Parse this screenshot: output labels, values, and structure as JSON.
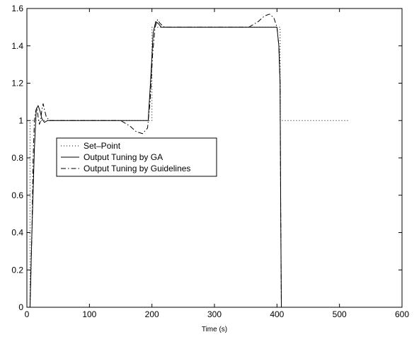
{
  "chart_data": {
    "type": "line",
    "title": "",
    "xlabel": "Time (s)",
    "ylabel": "",
    "xlim": [
      0,
      600
    ],
    "ylim": [
      0,
      1.6
    ],
    "xticks": [
      0,
      100,
      200,
      300,
      400,
      500,
      600
    ],
    "yticks": [
      0,
      0.2,
      0.4,
      0.6,
      0.8,
      1,
      1.2,
      1.4,
      1.6
    ],
    "grid": false,
    "legend": "center-left",
    "series": [
      {
        "name": "Set–Point",
        "style": "dotted",
        "color": "#000000",
        "x": [
          0,
          5,
          5,
          200,
          200,
          405,
          405,
          515
        ],
        "y": [
          0,
          0,
          1,
          1,
          1.5,
          1.5,
          1,
          1
        ]
      },
      {
        "name": "Output Tuning by GA",
        "style": "solid",
        "color": "#000000",
        "x": [
          5,
          8,
          12,
          15,
          18,
          21,
          24,
          28,
          33,
          40,
          60,
          100,
          150,
          194,
          198,
          202,
          206,
          210,
          215,
          225,
          260,
          320,
          380,
          400,
          403,
          405,
          406,
          407
        ],
        "y": [
          0,
          0.4,
          0.85,
          1.06,
          1.08,
          1.05,
          1.01,
          0.99,
          1.0,
          1.0,
          1.0,
          1.0,
          1.0,
          1.0,
          1.22,
          1.47,
          1.53,
          1.52,
          1.5,
          1.5,
          1.5,
          1.5,
          1.5,
          1.5,
          1.4,
          1.2,
          0.5,
          0
        ]
      },
      {
        "name": "Output Tuning by Guidelines",
        "style": "dashdot",
        "color": "#000000",
        "x": [
          5,
          8,
          10,
          12,
          14,
          16,
          18,
          20,
          22,
          24,
          26,
          28,
          31,
          36,
          42,
          60,
          100,
          150,
          165,
          175,
          185,
          193,
          197,
          201,
          205,
          209,
          213,
          220,
          260,
          320,
          355,
          370,
          380,
          388,
          395,
          400,
          403,
          405,
          406,
          407
        ],
        "y": [
          0,
          0.4,
          0.8,
          1.0,
          1.05,
          1.07,
          1.02,
          0.98,
          1.0,
          1.06,
          1.09,
          1.06,
          1.02,
          1.0,
          1.0,
          1.0,
          1.0,
          1.0,
          0.97,
          0.94,
          0.93,
          0.96,
          1.1,
          1.35,
          1.5,
          1.54,
          1.52,
          1.5,
          1.5,
          1.5,
          1.5,
          1.53,
          1.56,
          1.57,
          1.55,
          1.5,
          1.4,
          1.2,
          0.5,
          0
        ]
      }
    ]
  }
}
